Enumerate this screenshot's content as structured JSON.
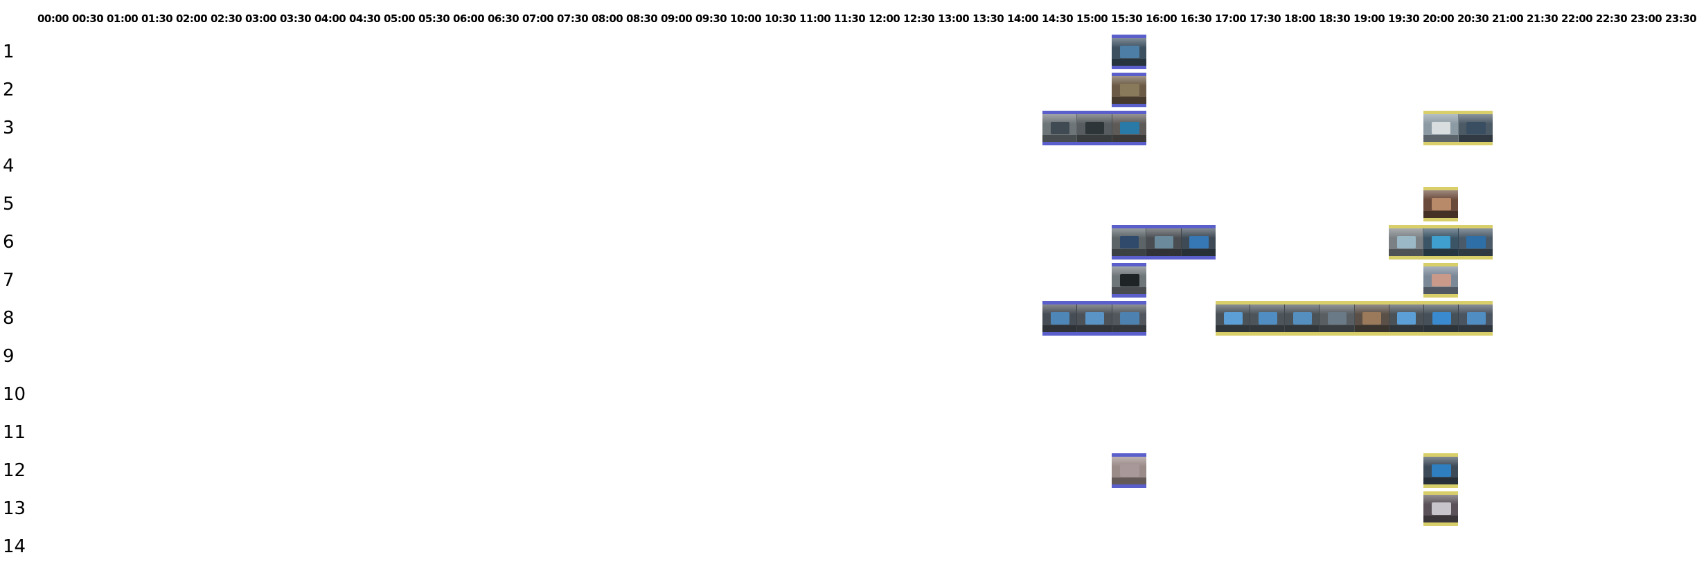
{
  "timeline": {
    "hours": [
      "00:00",
      "00:30",
      "01:00",
      "01:30",
      "02:00",
      "02:30",
      "03:00",
      "03:30",
      "04:00",
      "04:30",
      "05:00",
      "05:30",
      "06:00",
      "06:30",
      "07:00",
      "07:30",
      "08:00",
      "08:30",
      "09:00",
      "09:30",
      "10:00",
      "10:30",
      "11:00",
      "11:30",
      "12:00",
      "12:30",
      "13:00",
      "13:30",
      "14:00",
      "14:30",
      "15:00",
      "15:30",
      "16:00",
      "16:30",
      "17:00",
      "17:30",
      "18:00",
      "18:30",
      "19:00",
      "19:30",
      "20:00",
      "20:30",
      "21:00",
      "21:30",
      "22:00",
      "22:30",
      "23:00",
      "23:30"
    ],
    "rows": [
      "1",
      "2",
      "3",
      "4",
      "5",
      "6",
      "7",
      "8",
      "9",
      "10",
      "11",
      "12",
      "13",
      "14"
    ]
  },
  "colors": {
    "blue_track": "#5b5fcc",
    "yellow_track": "#d9cf6a"
  },
  "segments": [
    {
      "row": 1,
      "start": "15:30",
      "end": "16:00",
      "color": "blue",
      "thumbs": [
        {
          "bg": "#3d5060",
          "screen": "#4d7fa6"
        }
      ]
    },
    {
      "row": 2,
      "start": "15:30",
      "end": "16:00",
      "color": "blue",
      "thumbs": [
        {
          "bg": "#6b5a45",
          "screen": "#8a7a5c"
        }
      ]
    },
    {
      "row": 3,
      "start": "14:30",
      "end": "16:00",
      "color": "blue",
      "thumbs": [
        {
          "bg": "#6e7578",
          "screen": "#3f4a52"
        },
        {
          "bg": "#565c5f",
          "screen": "#2e3538"
        },
        {
          "bg": "#5d5a58",
          "screen": "#2a7aa8"
        }
      ]
    },
    {
      "row": 3,
      "start": "20:00",
      "end": "21:00",
      "color": "yellow",
      "thumbs": [
        {
          "bg": "#8c9aa3",
          "screen": "#d8dde0"
        },
        {
          "bg": "#4c5a66",
          "screen": "#3a4e62"
        }
      ]
    },
    {
      "row": 5,
      "start": "20:00",
      "end": "20:30",
      "color": "yellow",
      "thumbs": [
        {
          "bg": "#6a4a3a",
          "screen": "#b88a6a"
        }
      ]
    },
    {
      "row": 6,
      "start": "15:30",
      "end": "17:00",
      "color": "blue",
      "thumbs": [
        {
          "bg": "#5c6468",
          "screen": "#2f4a6b"
        },
        {
          "bg": "#4a4e52",
          "screen": "#6b8a9c"
        },
        {
          "bg": "#3e4a55",
          "screen": "#3677b5"
        }
      ]
    },
    {
      "row": 6,
      "start": "19:30",
      "end": "21:00",
      "color": "yellow",
      "thumbs": [
        {
          "bg": "#7a8084",
          "screen": "#9ab8c6"
        },
        {
          "bg": "#3c5566",
          "screen": "#3fa0d0"
        },
        {
          "bg": "#4a5a68",
          "screen": "#2e6fa8"
        }
      ]
    },
    {
      "row": 7,
      "start": "15:30",
      "end": "16:00",
      "color": "blue",
      "thumbs": [
        {
          "bg": "#6f767a",
          "screen": "#1e2326"
        }
      ]
    },
    {
      "row": 7,
      "start": "20:00",
      "end": "20:30",
      "color": "yellow",
      "thumbs": [
        {
          "bg": "#7a8898",
          "screen": "#c99a8a"
        }
      ]
    },
    {
      "row": 8,
      "start": "14:30",
      "end": "16:00",
      "color": "blue",
      "thumbs": [
        {
          "bg": "#474d54",
          "screen": "#4f86b8"
        },
        {
          "bg": "#4c5258",
          "screen": "#5a94c6"
        },
        {
          "bg": "#51575c",
          "screen": "#4d82b0"
        }
      ]
    },
    {
      "row": 8,
      "start": "17:00",
      "end": "21:00",
      "color": "yellow",
      "thumbs": [
        {
          "bg": "#4a5258",
          "screen": "#5b9fd6"
        },
        {
          "bg": "#4d555b",
          "screen": "#4f8dc2"
        },
        {
          "bg": "#4b5359",
          "screen": "#548fc0"
        },
        {
          "bg": "#585e62",
          "screen": "#6a7a86"
        },
        {
          "bg": "#5a5048",
          "screen": "#9a7a5a"
        },
        {
          "bg": "#4a5258",
          "screen": "#5b9fd6"
        },
        {
          "bg": "#455058",
          "screen": "#3a8ad0"
        },
        {
          "bg": "#4a5460",
          "screen": "#4f8dc2"
        }
      ]
    },
    {
      "row": 12,
      "start": "15:30",
      "end": "16:00",
      "color": "blue",
      "thumbs": [
        {
          "bg": "#9a8a88",
          "screen": "#a8989a"
        }
      ]
    },
    {
      "row": 12,
      "start": "20:00",
      "end": "20:30",
      "color": "yellow",
      "thumbs": [
        {
          "bg": "#3d4a58",
          "screen": "#2f7fc0"
        }
      ]
    },
    {
      "row": 13,
      "start": "20:00",
      "end": "20:30",
      "color": "yellow",
      "thumbs": [
        {
          "bg": "#5a5258",
          "screen": "#c8c4cc"
        }
      ]
    }
  ]
}
